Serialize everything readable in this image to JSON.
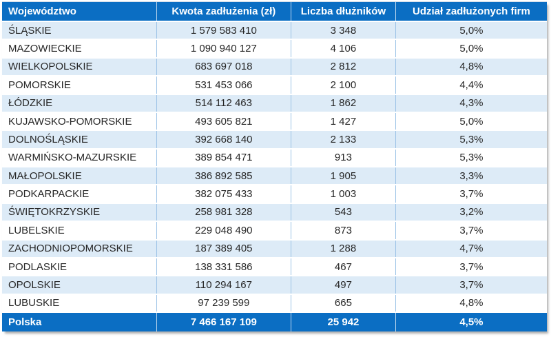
{
  "chart_data": {
    "type": "table",
    "columns": [
      "Województwo",
      "Kwota zadłużenia (zł)",
      "Liczba dłużników",
      "Udział zadłużonych firm"
    ],
    "rows": [
      [
        "ŚLĄSKIE",
        1579583410,
        3348,
        5.0
      ],
      [
        "MAZOWIECKIE",
        1090940127,
        4106,
        5.0
      ],
      [
        "WIELKOPOLSKIE",
        683697018,
        2812,
        4.8
      ],
      [
        "POMORSKIE",
        531453066,
        2100,
        4.4
      ],
      [
        "ŁÓDZKIE",
        514112463,
        1862,
        4.3
      ],
      [
        "KUJAWSKO-POMORSKIE",
        493605821,
        1427,
        5.0
      ],
      [
        "DOLNOŚLĄSKIE",
        392668140,
        2133,
        5.3
      ],
      [
        "WARMIŃSKO-MAZURSKIE",
        389854471,
        913,
        5.3
      ],
      [
        "MAŁOPOLSKIE",
        386892585,
        1905,
        3.3
      ],
      [
        "PODKARPACKIE",
        382075433,
        1003,
        3.7
      ],
      [
        "ŚWIĘTOKRZYSKIE",
        258981328,
        543,
        3.2
      ],
      [
        "LUBELSKIE",
        229048490,
        873,
        3.7
      ],
      [
        "ZACHODNIOPOMORSKIE",
        187389405,
        1288,
        4.7
      ],
      [
        "PODLASKIE",
        138331586,
        467,
        3.7
      ],
      [
        "OPOLSKIE",
        110294167,
        497,
        3.7
      ],
      [
        "LUBUSKIE",
        97239599,
        665,
        4.8
      ]
    ],
    "total_row": [
      "Polska",
      7466167109,
      25942,
      4.5
    ],
    "share_unit": "%"
  },
  "table": {
    "columns": [
      {
        "label": "Województwo"
      },
      {
        "label": "Kwota zadłużenia (zł)"
      },
      {
        "label": "Liczba dłużników"
      },
      {
        "label": "Udział zadłużonych firm"
      }
    ],
    "rows": [
      {
        "region": "ŚLĄSKIE",
        "amount": "1 579 583 410",
        "debtors": "3 348",
        "share": "5,0%"
      },
      {
        "region": "MAZOWIECKIE",
        "amount": "1 090 940 127",
        "debtors": "4 106",
        "share": "5,0%"
      },
      {
        "region": "WIELKOPOLSKIE",
        "amount": "683 697 018",
        "debtors": "2 812",
        "share": "4,8%"
      },
      {
        "region": "POMORSKIE",
        "amount": "531 453 066",
        "debtors": "2 100",
        "share": "4,4%"
      },
      {
        "region": "ŁÓDZKIE",
        "amount": "514 112 463",
        "debtors": "1 862",
        "share": "4,3%"
      },
      {
        "region": "KUJAWSKO-POMORSKIE",
        "amount": "493 605 821",
        "debtors": "1 427",
        "share": "5,0%"
      },
      {
        "region": "DOLNOŚLĄSKIE",
        "amount": "392 668 140",
        "debtors": "2 133",
        "share": "5,3%"
      },
      {
        "region": "WARMIŃSKO-MAZURSKIE",
        "amount": "389 854 471",
        "debtors": "913",
        "share": "5,3%"
      },
      {
        "region": "MAŁOPOLSKIE",
        "amount": "386 892 585",
        "debtors": "1 905",
        "share": "3,3%"
      },
      {
        "region": "PODKARPACKIE",
        "amount": "382 075 433",
        "debtors": "1 003",
        "share": "3,7%"
      },
      {
        "region": "ŚWIĘTOKRZYSKIE",
        "amount": "258 981 328",
        "debtors": "543",
        "share": "3,2%"
      },
      {
        "region": "LUBELSKIE",
        "amount": "229 048 490",
        "debtors": "873",
        "share": "3,7%"
      },
      {
        "region": "ZACHODNIOPOMORSKIE",
        "amount": "187 389 405",
        "debtors": "1 288",
        "share": "4,7%"
      },
      {
        "region": "PODLASKIE",
        "amount": "138 331 586",
        "debtors": "467",
        "share": "3,7%"
      },
      {
        "region": "OPOLSKIE",
        "amount": "110 294 167",
        "debtors": "497",
        "share": "3,7%"
      },
      {
        "region": "LUBUSKIE",
        "amount": "97 239 599",
        "debtors": "665",
        "share": "4,8%"
      }
    ],
    "total": {
      "region": "Polska",
      "amount": "7 466 167 109",
      "debtors": "25 942",
      "share": "4,5%"
    }
  },
  "colors": {
    "header_bg": "#0b6ec3",
    "total_bg": "#0b6ec3",
    "row_alt_bg": "#ddebf7",
    "grid_line": "#9bc2e6",
    "text_color": "#262626"
  }
}
